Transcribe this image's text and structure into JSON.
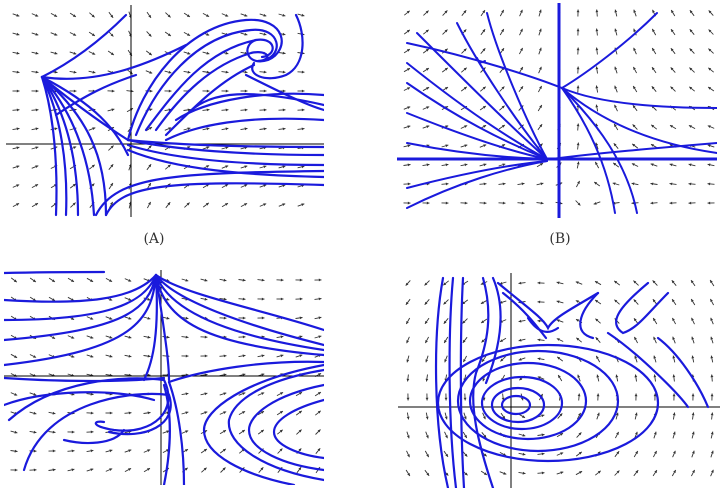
{
  "captions": {
    "a": "(A)",
    "b": "(B)"
  },
  "colors": {
    "stream": "#1a1adc",
    "arrow": "#333333",
    "axis": "#000000"
  },
  "panels": [
    {
      "id": "a",
      "kind": "spiral-source-saddle"
    },
    {
      "id": "b",
      "kind": "node-with-separatrix"
    },
    {
      "id": "c",
      "kind": "spiral-lower-left"
    },
    {
      "id": "d",
      "kind": "center-with-saddles"
    }
  ]
}
